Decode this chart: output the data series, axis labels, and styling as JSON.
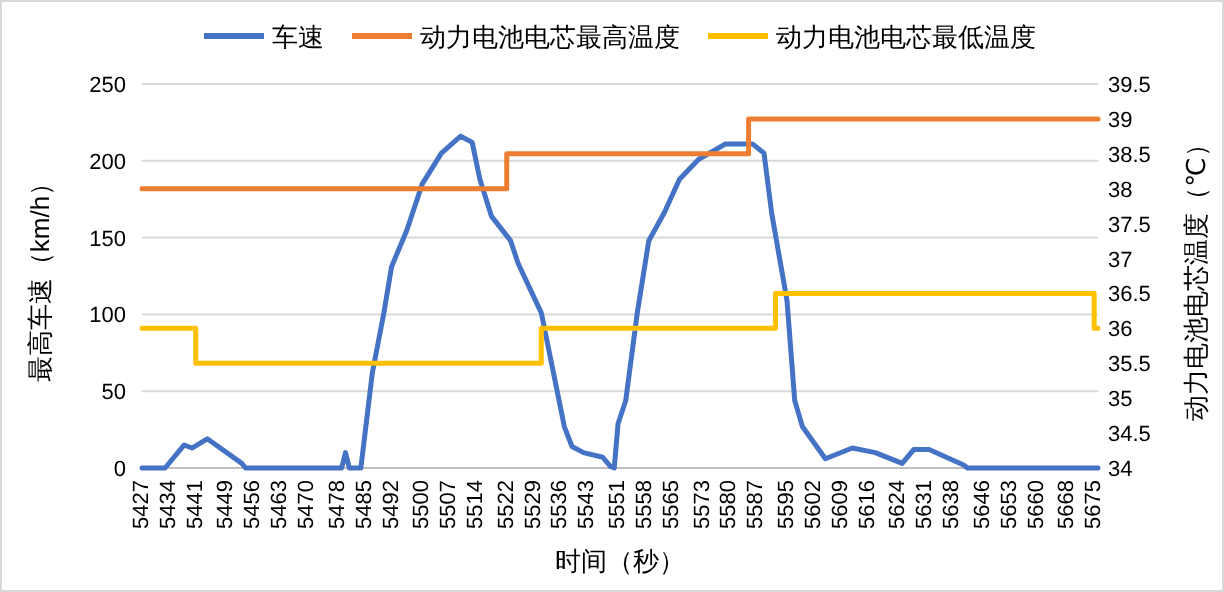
{
  "chart_data": {
    "type": "line",
    "xlabel": "时间（秒）",
    "ylabel": "最高车速（km/h）",
    "y2label": "动力电池电芯温度（℃）",
    "xlim": [
      5427,
      5676
    ],
    "xticks": [
      5427,
      5434,
      5441,
      5449,
      5456,
      5463,
      5470,
      5478,
      5485,
      5492,
      5500,
      5507,
      5514,
      5522,
      5529,
      5536,
      5543,
      5551,
      5558,
      5565,
      5573,
      5580,
      5587,
      5595,
      5602,
      5609,
      5616,
      5624,
      5631,
      5638,
      5646,
      5653,
      5660,
      5668,
      5675
    ],
    "ylim": [
      0,
      250
    ],
    "yticks": [
      0,
      50,
      100,
      150,
      200,
      250
    ],
    "y2lim": [
      34,
      39.5
    ],
    "y2ticks": [
      34,
      34.5,
      35,
      35.5,
      36,
      36.5,
      37,
      37.5,
      38,
      38.5,
      39,
      39.5
    ],
    "grid": "y",
    "legend": "top",
    "series": [
      {
        "name": "车速",
        "type": "line",
        "color": "#4472c4",
        "x": [
          5427,
          5433,
          5438,
          5440,
          5444,
          5453,
          5454,
          5479,
          5480,
          5481,
          5484,
          5487,
          5490,
          5492,
          5496,
          5500,
          5505,
          5510,
          5513,
          5515,
          5518,
          5523,
          5525,
          5531,
          5537,
          5539,
          5542,
          5547,
          5549,
          5550,
          5551,
          5553,
          5556,
          5559,
          5563,
          5567,
          5572,
          5579,
          5586,
          5589,
          5591,
          5595,
          5597,
          5599,
          5605,
          5612,
          5618,
          5625,
          5628,
          5632,
          5641,
          5642,
          5676
        ],
        "values": [
          0,
          0,
          15,
          13,
          19,
          3,
          0,
          0,
          10,
          0,
          0,
          62,
          101,
          131,
          155,
          185,
          205,
          216,
          212,
          188,
          164,
          148,
          133,
          101,
          27,
          14,
          10,
          7,
          1,
          0,
          29,
          44,
          101,
          148,
          166,
          188,
          201,
          211,
          211,
          205,
          166,
          109,
          44,
          27,
          6,
          13,
          10,
          3,
          12,
          12,
          2,
          0,
          0
        ]
      },
      {
        "name": "动力电池电芯最高温度",
        "type": "step",
        "axis": "y2",
        "color": "#ed7d31",
        "x": [
          5427,
          5522,
          5585,
          5676
        ],
        "values": [
          38,
          38.5,
          39,
          39
        ]
      },
      {
        "name": "动力电池电芯最低温度",
        "type": "step",
        "axis": "y2",
        "color": "#ffc000",
        "x": [
          5427,
          5441,
          5531,
          5592,
          5675,
          5676
        ],
        "values": [
          36,
          35.5,
          36,
          36.5,
          36,
          36
        ]
      }
    ]
  }
}
